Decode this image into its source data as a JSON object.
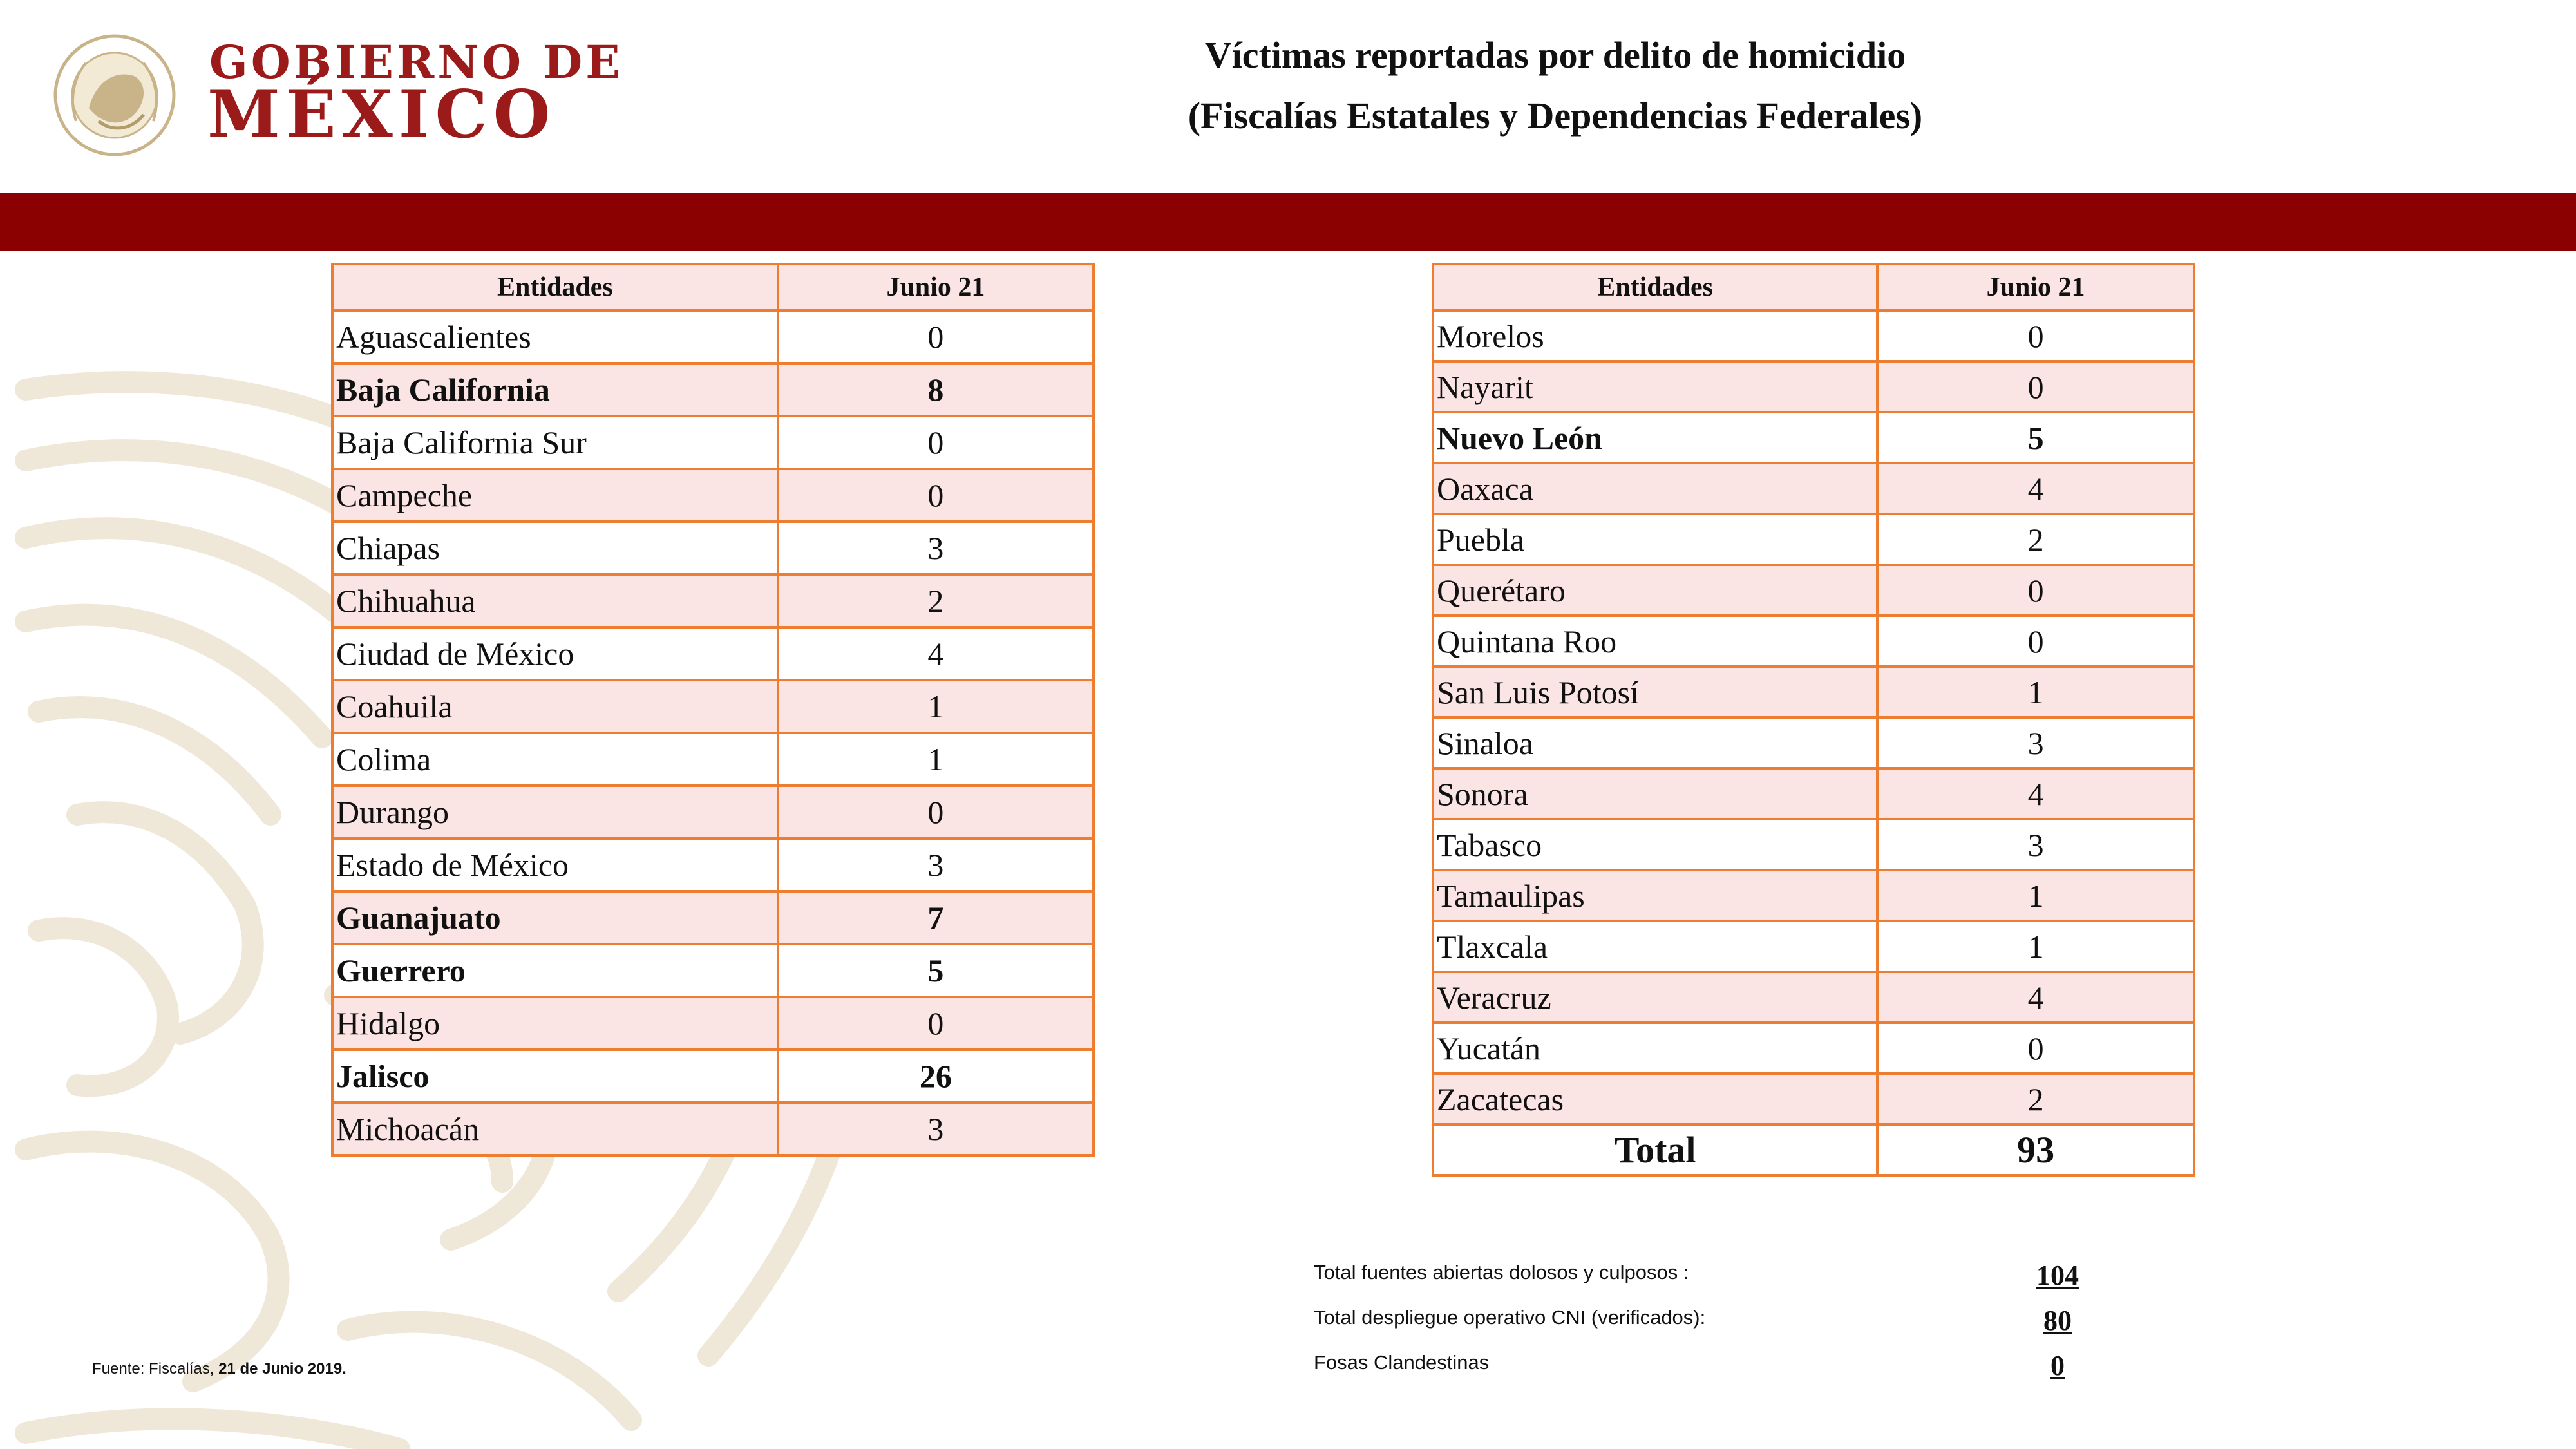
{
  "header": {
    "brand_line1": "GOBIERNO DE",
    "brand_line2": "MÉXICO",
    "title_line1": "Víctimas reportadas por delito de homicidio",
    "title_line2": "(Fiscalías Estatales y Dependencias Federales)"
  },
  "colors": {
    "brand": "#9b1b1b",
    "band": "#8b0000",
    "table_border": "#ed7d31",
    "row_shade": "#fbe4e4"
  },
  "left_table": {
    "headers": [
      "Entidades",
      "Junio 21"
    ],
    "rows": [
      {
        "name": "Aguascalientes",
        "value": "0",
        "bold": false
      },
      {
        "name": "Baja California",
        "value": "8",
        "bold": true
      },
      {
        "name": "Baja California Sur",
        "value": "0",
        "bold": false
      },
      {
        "name": "Campeche",
        "value": "0",
        "bold": false
      },
      {
        "name": "Chiapas",
        "value": "3",
        "bold": false
      },
      {
        "name": "Chihuahua",
        "value": "2",
        "bold": false
      },
      {
        "name": "Ciudad de México",
        "value": "4",
        "bold": false
      },
      {
        "name": "Coahuila",
        "value": "1",
        "bold": false
      },
      {
        "name": "Colima",
        "value": "1",
        "bold": false
      },
      {
        "name": "Durango",
        "value": "0",
        "bold": false
      },
      {
        "name": "Estado de México",
        "value": "3",
        "bold": false
      },
      {
        "name": "Guanajuato",
        "value": "7",
        "bold": true
      },
      {
        "name": "Guerrero",
        "value": "5",
        "bold": true
      },
      {
        "name": "Hidalgo",
        "value": "0",
        "bold": false
      },
      {
        "name": "Jalisco",
        "value": "26",
        "bold": true
      },
      {
        "name": "Michoacán",
        "value": "3",
        "bold": false
      }
    ]
  },
  "right_table": {
    "headers": [
      "Entidades",
      "Junio 21"
    ],
    "rows": [
      {
        "name": "Morelos",
        "value": "0",
        "bold": false
      },
      {
        "name": "Nayarit",
        "value": "0",
        "bold": false
      },
      {
        "name": "Nuevo León",
        "value": "5",
        "bold": true
      },
      {
        "name": "Oaxaca",
        "value": "4",
        "bold": false
      },
      {
        "name": "Puebla",
        "value": "2",
        "bold": false
      },
      {
        "name": "Querétaro",
        "value": "0",
        "bold": false
      },
      {
        "name": "Quintana Roo",
        "value": "0",
        "bold": false
      },
      {
        "name": "San Luis Potosí",
        "value": "1",
        "bold": false
      },
      {
        "name": "Sinaloa",
        "value": "3",
        "bold": false
      },
      {
        "name": "Sonora",
        "value": "4",
        "bold": false
      },
      {
        "name": "Tabasco",
        "value": "3",
        "bold": false
      },
      {
        "name": "Tamaulipas",
        "value": "1",
        "bold": false
      },
      {
        "name": "Tlaxcala",
        "value": "1",
        "bold": false
      },
      {
        "name": "Veracruz",
        "value": "4",
        "bold": false
      },
      {
        "name": "Yucatán",
        "value": "0",
        "bold": false
      },
      {
        "name": "Zacatecas",
        "value": "2",
        "bold": false
      }
    ],
    "total_label": "Total",
    "total_value": "93"
  },
  "summary": [
    {
      "label": "Total fuentes abiertas dolosos y culposos :",
      "value": "104"
    },
    {
      "label": "Total despliegue operativo CNI (verificados):",
      "value": "80"
    },
    {
      "label": "Fosas Clandestinas",
      "value": "0"
    }
  ],
  "source": {
    "prefix": "Fuente: Fiscalías, ",
    "date": "21 de Junio 2019."
  }
}
